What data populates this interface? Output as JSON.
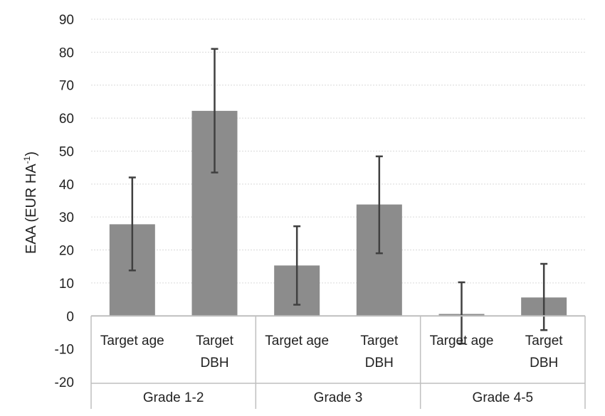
{
  "chart_data": {
    "type": "bar",
    "title": "",
    "ylabel": "EAA (EUR HA",
    "ylabel_sup": "-1",
    "ylabel_end": ")",
    "ylim": [
      -20,
      90
    ],
    "yticks": [
      90,
      80,
      70,
      60,
      50,
      40,
      30,
      20,
      10,
      0,
      -10,
      -20
    ],
    "grid": true,
    "categories": [
      "Target  age",
      "Target DBH",
      "Target  age",
      "Target DBH",
      "Target  age",
      "Target DBH"
    ],
    "category_lines": [
      [
        "Target  age"
      ],
      [
        "Target",
        "DBH"
      ],
      [
        "Target  age"
      ],
      [
        "Target",
        "DBH"
      ],
      [
        "Target  age"
      ],
      [
        "Target",
        "DBH"
      ]
    ],
    "groups": [
      "Grade 1-2",
      "Grade 3",
      "Grade 4-5"
    ],
    "values": [
      27.8,
      62.2,
      15.3,
      33.8,
      0.6,
      5.6
    ],
    "error_low": [
      13.8,
      43.5,
      3.4,
      19.0,
      -8.4,
      -4.3
    ],
    "error_high": [
      42.0,
      81.0,
      27.2,
      48.4,
      10.2,
      15.8
    ],
    "colors": {
      "bar": "#8c8c8c",
      "error": "#404040",
      "grid": "#d9d9d9",
      "axis": "#bfbfbf"
    }
  }
}
